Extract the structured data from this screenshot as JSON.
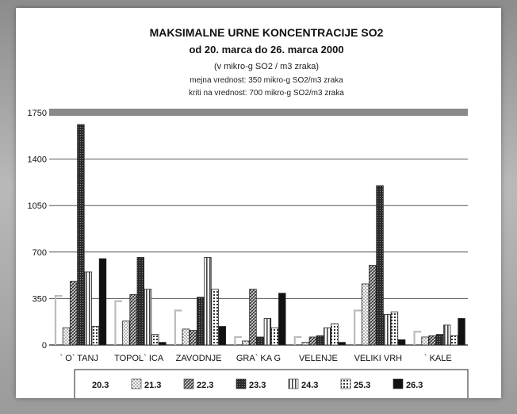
{
  "chart_data": {
    "type": "bar",
    "title": "MAKSIMALNE URNE KONCENTRACIJE SO2",
    "subtitle": "od 20. marca do 26. marca 2000",
    "unit_note": "(v mikro-g SO2 / m3 zraka)",
    "notes": [
      "mejna vrednost: 350 mikro-g SO2/m3 zraka",
      "kriti na vrednost: 700 mikro-g SO2/m3 zraka"
    ],
    "ylim": [
      0,
      1750
    ],
    "yticks": [
      "0",
      "350",
      "700",
      "1050",
      "1400",
      "1750"
    ],
    "categories": [
      "` O` TANJ",
      "TOPOL` ICA",
      "ZAVODNJE",
      "GRA` KA G",
      "VELENJE",
      "VELIKI VRH",
      "` KALE"
    ],
    "series": [
      {
        "name": "20.3",
        "values": [
          370,
          330,
          260,
          60,
          60,
          260,
          100
        ]
      },
      {
        "name": "21.3",
        "values": [
          130,
          180,
          120,
          30,
          20,
          460,
          60
        ]
      },
      {
        "name": "22.3",
        "values": [
          480,
          380,
          110,
          420,
          60,
          600,
          70
        ]
      },
      {
        "name": "23.3",
        "values": [
          1660,
          660,
          360,
          60,
          70,
          1200,
          80
        ]
      },
      {
        "name": "24.3",
        "values": [
          550,
          420,
          660,
          200,
          130,
          230,
          150
        ]
      },
      {
        "name": "25.3",
        "values": [
          140,
          80,
          420,
          130,
          160,
          250,
          70
        ]
      },
      {
        "name": "26.3",
        "values": [
          650,
          20,
          140,
          390,
          20,
          40,
          200
        ]
      }
    ],
    "grid": true,
    "legend": "bottom",
    "colors": {
      "bar_fill": "#ffffff",
      "bar_stroke": "#222222",
      "grid": "#555555",
      "top_band": "#8a8a8a"
    }
  }
}
